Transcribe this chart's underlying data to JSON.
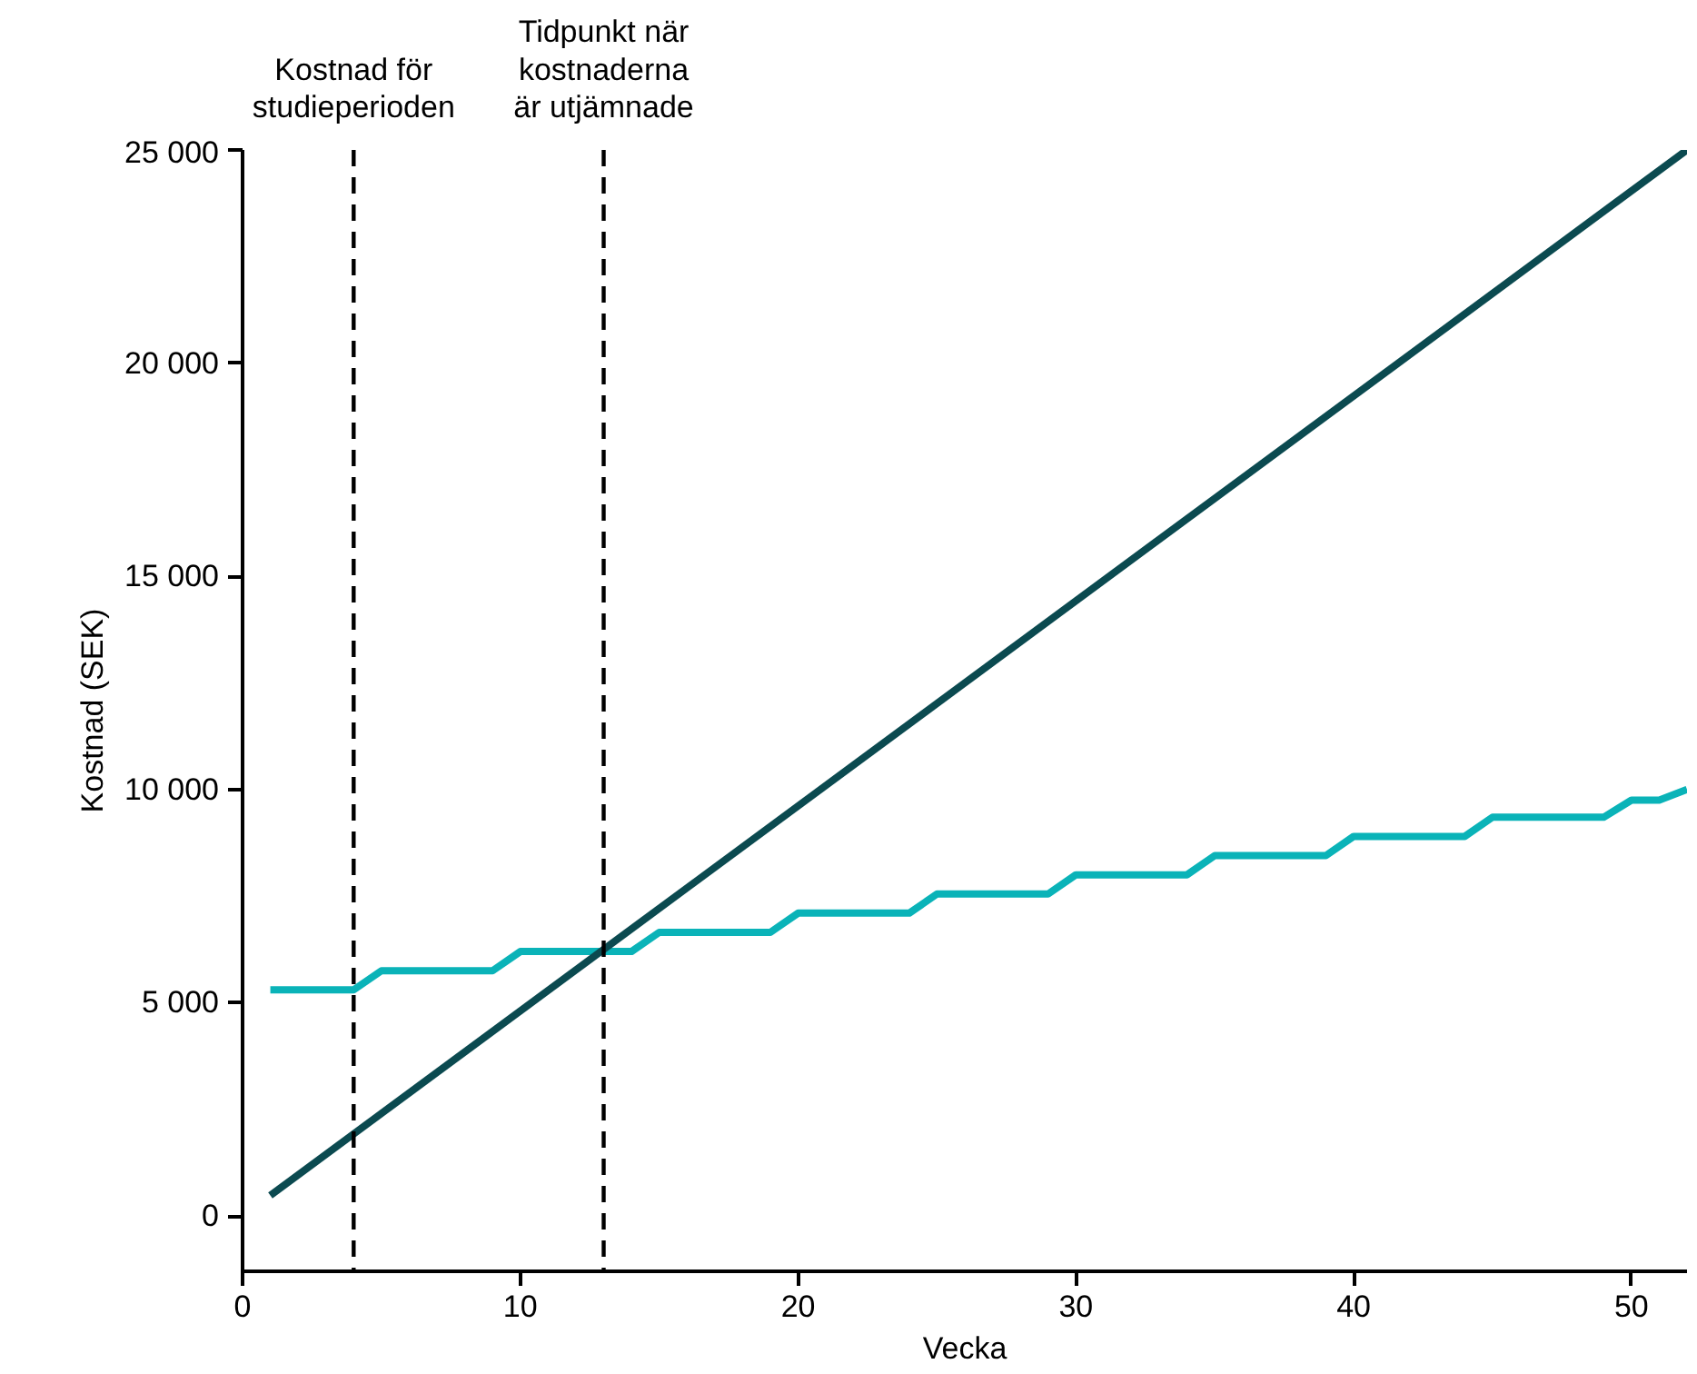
{
  "chart_data": {
    "type": "line",
    "xlabel": "Vecka",
    "ylabel": "Kostnad (SEK)",
    "xlim": [
      0,
      52
    ],
    "xticks": [
      0,
      10,
      20,
      30,
      40,
      50
    ],
    "ylim": [
      -1300,
      25000
    ],
    "yticks": [
      {
        "value": 0,
        "label": "0"
      },
      {
        "value": 5000,
        "label": "5 000"
      },
      {
        "value": 10000,
        "label": "10 000"
      },
      {
        "value": 15000,
        "label": "15 000"
      },
      {
        "value": 20000,
        "label": "20 000"
      },
      {
        "value": 25000,
        "label": "25 000"
      }
    ],
    "grid": false,
    "marker": "none",
    "line_style": "solid",
    "series": [
      {
        "color": "#0ab3b8",
        "x": [
          1,
          4,
          5,
          9,
          10,
          14,
          15,
          19,
          20,
          24,
          25,
          29,
          30,
          34,
          35,
          39,
          40,
          44,
          45,
          49,
          50,
          51,
          52
        ],
        "values": [
          5300,
          5300,
          5750,
          5750,
          6200,
          6200,
          6650,
          6650,
          7100,
          7100,
          7550,
          7550,
          8000,
          8000,
          8450,
          8450,
          8900,
          8900,
          9350,
          9350,
          9750,
          9750,
          10000
        ]
      },
      {
        "color": "#0b4a50",
        "x": [
          1,
          52
        ],
        "values": [
          480,
          25000
        ]
      }
    ],
    "ref_lines": [
      {
        "axis": "x",
        "value": 4,
        "label": "Kostnad för\nstudieperioden",
        "color": "#000000",
        "line_style": "dashed"
      },
      {
        "axis": "x",
        "value": 13,
        "label": "Tidpunkt när\nkostnaderna\när utjämnade",
        "color": "#000000",
        "line_style": "dashed"
      }
    ]
  }
}
